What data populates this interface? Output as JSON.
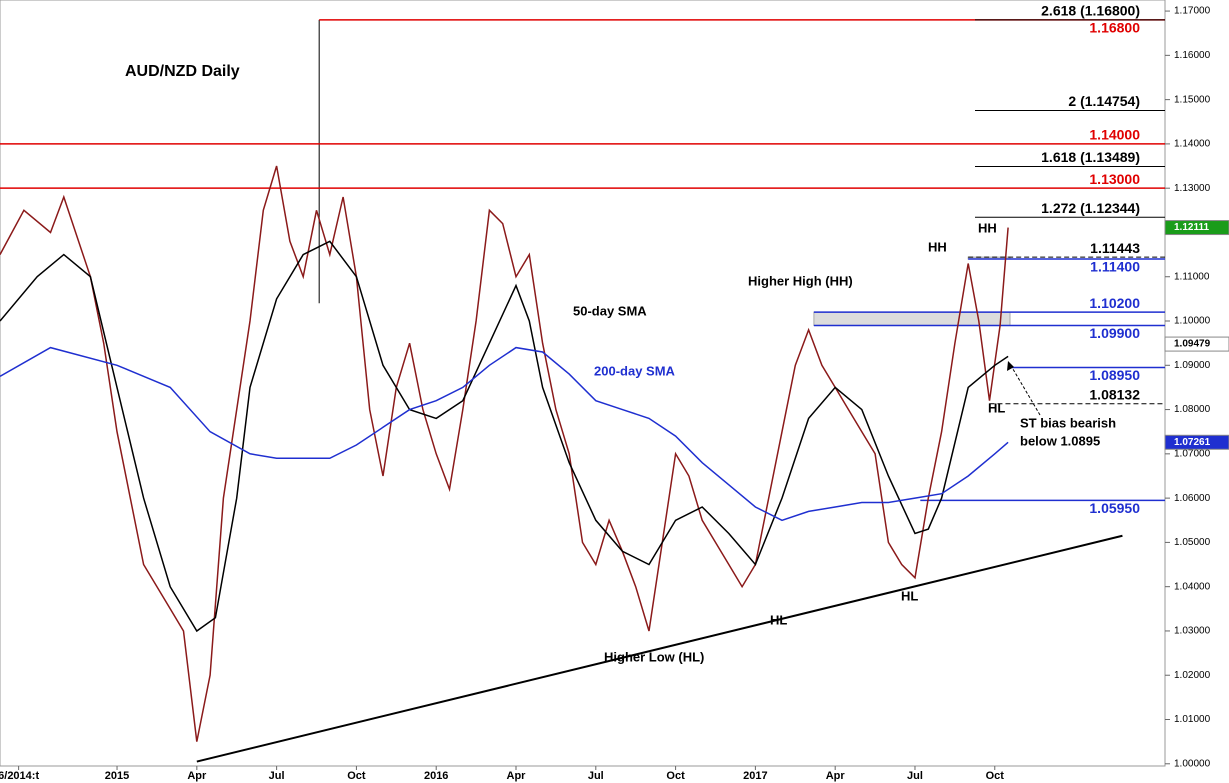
{
  "chart_data": {
    "type": "line",
    "title": "AUD/NZD Daily",
    "xlim": [
      -4.4,
      39.4
    ],
    "ylim": [
      0.9995,
      1.1725
    ],
    "xticks": [
      {
        "value": -3.7,
        "label": "6/2014:t"
      },
      {
        "value": 0,
        "label": "2015"
      },
      {
        "value": 3,
        "label": "Apr"
      },
      {
        "value": 6,
        "label": "Jul"
      },
      {
        "value": 9,
        "label": "Oct"
      },
      {
        "value": 12,
        "label": "2016"
      },
      {
        "value": 15,
        "label": "Apr"
      },
      {
        "value": 18,
        "label": "Jul"
      },
      {
        "value": 21,
        "label": "Oct"
      },
      {
        "value": 24,
        "label": "2017"
      },
      {
        "value": 27,
        "label": "Apr"
      },
      {
        "value": 30,
        "label": "Jul"
      },
      {
        "value": 33,
        "label": "Oct"
      }
    ],
    "yticks": [
      {
        "value": 1.0,
        "label": "1.00000"
      },
      {
        "value": 1.01,
        "label": "1.01000"
      },
      {
        "value": 1.02,
        "label": "1.02000"
      },
      {
        "value": 1.03,
        "label": "1.03000"
      },
      {
        "value": 1.04,
        "label": "1.04000"
      },
      {
        "value": 1.05,
        "label": "1.05000"
      },
      {
        "value": 1.06,
        "label": "1.06000"
      },
      {
        "value": 1.07,
        "label": "1.07000"
      },
      {
        "value": 1.08,
        "label": "1.08000"
      },
      {
        "value": 1.09,
        "label": "1.09000"
      },
      {
        "value": 1.1,
        "label": "1.10000"
      },
      {
        "value": 1.11,
        "label": "1.11000"
      },
      {
        "value": 1.12,
        "label": "1.12000"
      },
      {
        "value": 1.13,
        "label": "1.13000"
      },
      {
        "value": 1.14,
        "label": "1.14000"
      },
      {
        "value": 1.15,
        "label": "1.15000"
      },
      {
        "value": 1.16,
        "label": "1.16000"
      },
      {
        "value": 1.17,
        "label": "1.17000"
      }
    ],
    "series": [
      {
        "color": "#8b1a1a",
        "x": [
          -4.4,
          -3.5,
          -2.5,
          -2,
          -1,
          -0.5,
          0,
          0.5,
          1,
          2,
          2.5,
          3,
          3.5,
          4,
          4.5,
          5,
          5.5,
          6,
          6.5,
          7,
          7.5,
          8,
          8.5,
          9,
          9.5,
          10,
          10.5,
          11,
          11.5,
          12,
          12.5,
          13,
          13.5,
          14,
          14.5,
          15,
          15.5,
          16,
          16.5,
          17,
          17.5,
          18,
          18.5,
          19,
          19.5,
          20,
          20.5,
          21,
          21.5,
          22,
          22.5,
          23,
          23.5,
          24,
          24.5,
          25,
          25.5,
          26,
          26.5,
          27,
          27.5,
          28,
          28.5,
          29,
          29.5,
          30,
          30.5,
          31,
          31.5,
          32,
          32.4,
          32.8,
          33.2,
          33.5
        ],
        "values": [
          1.115,
          1.125,
          1.12,
          1.128,
          1.11,
          1.095,
          1.075,
          1.06,
          1.045,
          1.035,
          1.03,
          1.005,
          1.02,
          1.06,
          1.08,
          1.1,
          1.125,
          1.135,
          1.118,
          1.11,
          1.125,
          1.115,
          1.128,
          1.11,
          1.08,
          1.065,
          1.085,
          1.095,
          1.08,
          1.07,
          1.062,
          1.08,
          1.1,
          1.125,
          1.122,
          1.11,
          1.115,
          1.095,
          1.08,
          1.07,
          1.05,
          1.045,
          1.055,
          1.048,
          1.04,
          1.03,
          1.05,
          1.07,
          1.065,
          1.055,
          1.05,
          1.045,
          1.04,
          1.045,
          1.06,
          1.075,
          1.09,
          1.098,
          1.09,
          1.085,
          1.08,
          1.075,
          1.07,
          1.05,
          1.045,
          1.042,
          1.06,
          1.075,
          1.095,
          1.113,
          1.1,
          1.082,
          1.099,
          1.1211
        ]
      },
      {
        "name": "50-day SMA",
        "color": "#000000",
        "x": [
          -4.4,
          -3,
          -2,
          -1,
          0,
          1,
          2,
          3,
          3.7,
          4.5,
          5,
          6,
          7,
          8,
          9,
          10,
          11,
          12,
          13,
          14,
          15,
          15.5,
          16,
          17,
          18,
          19,
          20,
          21,
          22,
          23,
          24,
          25,
          26,
          27,
          28,
          29,
          30,
          30.5,
          31,
          32,
          33,
          33.5
        ],
        "values": [
          1.1,
          1.11,
          1.115,
          1.11,
          1.085,
          1.06,
          1.04,
          1.03,
          1.033,
          1.06,
          1.085,
          1.105,
          1.115,
          1.118,
          1.11,
          1.09,
          1.08,
          1.078,
          1.082,
          1.095,
          1.108,
          1.1,
          1.085,
          1.068,
          1.055,
          1.048,
          1.045,
          1.055,
          1.058,
          1.052,
          1.045,
          1.06,
          1.078,
          1.085,
          1.08,
          1.065,
          1.052,
          1.053,
          1.06,
          1.085,
          1.09,
          1.092
        ]
      },
      {
        "name": "200-day SMA",
        "color": "#1f2fd0",
        "x": [
          -4.4,
          -2.5,
          0,
          2,
          3.5,
          5,
          6,
          8,
          9,
          10,
          11,
          12,
          13,
          14,
          15,
          16,
          17,
          18,
          19,
          20,
          21,
          22,
          23,
          24,
          25,
          26,
          27,
          28,
          29,
          30,
          31,
          32,
          33,
          33.5
        ],
        "values": [
          1.0875,
          1.094,
          1.09,
          1.085,
          1.075,
          1.07,
          1.069,
          1.069,
          1.072,
          1.076,
          1.08,
          1.082,
          1.085,
          1.09,
          1.094,
          1.093,
          1.088,
          1.082,
          1.08,
          1.078,
          1.074,
          1.068,
          1.063,
          1.058,
          1.055,
          1.057,
          1.058,
          1.059,
          1.059,
          1.06,
          1.061,
          1.065,
          1.07,
          1.0726
        ]
      }
    ],
    "levels": [
      {
        "value": 1.168,
        "label": "1.16800",
        "color": "#e00000",
        "from_x": 7.6
      },
      {
        "value": 1.14,
        "label": "1.14000",
        "color": "#e00000",
        "from_x": -4.4
      },
      {
        "value": 1.13,
        "label": "1.13000",
        "color": "#e00000",
        "from_x": -4.4
      },
      {
        "value": 1.11443,
        "color": "#000000",
        "from_x": 32.0
      },
      {
        "value": 1.114,
        "label": "1.11400",
        "color": "#1f2fd0",
        "from_x": 32.0
      },
      {
        "value": 1.102,
        "label": "1.10200",
        "color": "#1f2fd0",
        "from_x": 26.2
      },
      {
        "value": 1.099,
        "label": "1.09900",
        "color": "#1f2fd0",
        "from_x": 26.2
      },
      {
        "value": 1.0895,
        "label": "1.08950",
        "color": "#1f2fd0",
        "from_x": 33.5
      },
      {
        "value": 1.08132,
        "color": "#000000",
        "from_x": 32.8
      },
      {
        "value": 1.0595,
        "label": "1.05950",
        "color": "#1f2fd0",
        "from_x": 30.2
      }
    ],
    "fibs": [
      {
        "value": 1.168,
        "label": "2.618 (1.16800)"
      },
      {
        "value": 1.14754,
        "label": "2 (1.14754)"
      },
      {
        "value": 1.13489,
        "label": "1.618 (1.13489)"
      },
      {
        "value": 1.12344,
        "label": "1.272 (1.12344)"
      }
    ],
    "fib_anchor": {
      "x": 7.6,
      "low": 1.104
    },
    "trendline": {
      "x": [
        3,
        37.8
      ],
      "values": [
        1.0005,
        1.0515
      ]
    },
    "price_tags": [
      {
        "value": 1.12111,
        "label": "1.12111",
        "color": "#1a9c1a"
      },
      {
        "value": 1.09479,
        "label": "1.09479",
        "color": "#ffffff"
      },
      {
        "value": 1.07261,
        "label": "1.07261",
        "color": "#1f2fd0"
      }
    ],
    "annotations": [
      "Higher High (HH)",
      "HH",
      "HH",
      "HL",
      "ST bias bearish",
      "below 1.0895",
      "HL",
      "HL",
      "Higher Low (HL)"
    ]
  }
}
